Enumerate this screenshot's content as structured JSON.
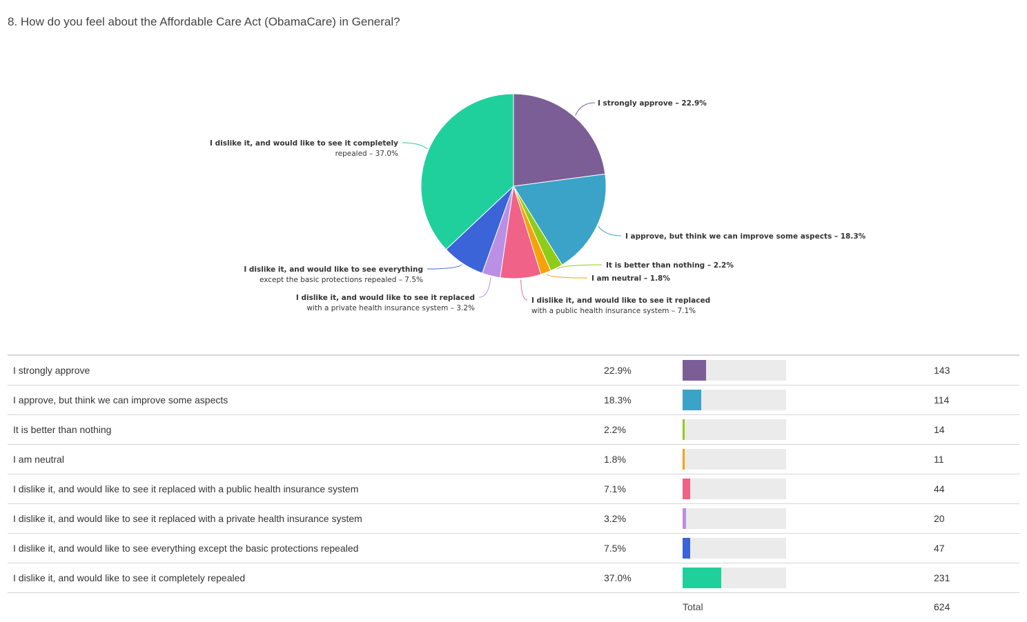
{
  "question": {
    "title": "8. How do you feel about the Affordable Care Act (ObamaCare) in General?"
  },
  "chart_data": {
    "type": "pie",
    "title": "",
    "slices": [
      {
        "label": "I strongly approve",
        "pct_label": "22.9%",
        "value": 22.9,
        "count": 143,
        "color": "#7b5e96",
        "label_lines": [
          "I strongly approve – 22.9%"
        ]
      },
      {
        "label": "I approve, but think we can improve some aspects",
        "pct_label": "18.3%",
        "value": 18.3,
        "count": 114,
        "color": "#3ba3c7",
        "label_lines": [
          "I approve, but think we can improve some aspects – 18.3%"
        ]
      },
      {
        "label": "It is better than nothing",
        "pct_label": "2.2%",
        "value": 2.2,
        "count": 14,
        "color": "#8fcc1a",
        "label_lines": [
          "It is better than nothing – 2.2%"
        ]
      },
      {
        "label": "I am neutral",
        "pct_label": "1.8%",
        "value": 1.8,
        "count": 11,
        "color": "#f5a20a",
        "label_lines": [
          "I am neutral – 1.8%"
        ]
      },
      {
        "label": "I dislike it, and would like to see it replaced with a public health insurance system",
        "pct_label": "7.1%",
        "value": 7.1,
        "count": 44,
        "color": "#f06287",
        "label_lines": [
          "I dislike it, and would like to see it replaced",
          "with a public health insurance system – 7.1%"
        ]
      },
      {
        "label": "I dislike it, and would like to see it replaced with a private health insurance system",
        "pct_label": "3.2%",
        "value": 3.2,
        "count": 20,
        "color": "#bb8fe3",
        "label_lines": [
          "I dislike it, and would like to see it replaced",
          "with a private health insurance system – 3.2%"
        ]
      },
      {
        "label": "I dislike it, and would like to see everything except the basic protections repealed",
        "pct_label": "7.5%",
        "value": 7.5,
        "count": 47,
        "color": "#3a64d8",
        "label_lines": [
          "I dislike it, and would like to see everything",
          "except the basic protections repealed – 7.5%"
        ]
      },
      {
        "label": "I dislike it, and would like to see it completely repealed",
        "pct_label": "37.0%",
        "value": 37.0,
        "count": 231,
        "color": "#20d09c",
        "label_lines": [
          "I dislike it, and would like to see it completely",
          "repealed – 37.0%"
        ]
      }
    ],
    "total_label": "Total",
    "total": 624
  }
}
